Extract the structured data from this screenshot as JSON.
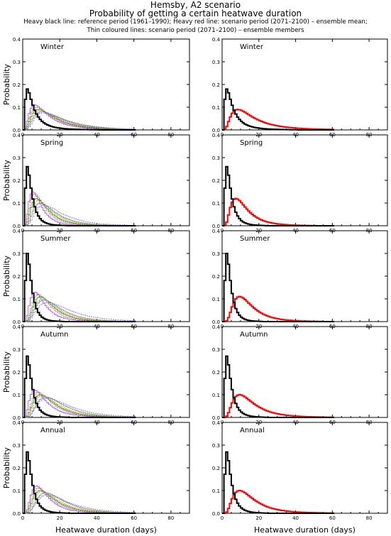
{
  "header": {
    "title": "Hemsby, A2 scenario",
    "subtitle": "Probability of getting a certain heatwave duration",
    "legend_line1": "Heavy black line: reference period (1961–1990); Heavy red line: scenario period (2071–2100) – ensemble mean;",
    "legend_line2": "Thin coloured lines: scenario period (2071–2100) – ensemble members"
  },
  "colors": {
    "reference": "#000000",
    "ensemble_mean": "#ff0000",
    "members": [
      "#a040ff",
      "#ff2020",
      "#00a000",
      "#d08000",
      "#808080",
      "#6060ff"
    ]
  },
  "chart_data": {
    "type": "line",
    "step": true,
    "xlabel": "Heatwave duration (days)",
    "ylabel": "Probability",
    "xlim": [
      0,
      90
    ],
    "ylim": [
      0,
      0.4
    ],
    "xticks": [
      "0",
      "20",
      "40",
      "60",
      "80"
    ],
    "yticks": [
      "0.0",
      "0.1",
      "0.2",
      "0.3",
      "0.4"
    ],
    "seasons": [
      {
        "name": "Winter",
        "reference": {
          "peak_x": 2,
          "peak_y": 0.18,
          "spread": 3.5
        },
        "ensemble_mean": {
          "peak_x": 8,
          "peak_y": 0.09,
          "spread": 10
        },
        "members": [
          {
            "peak_x": 6,
            "peak_y": 0.11,
            "spread": 8
          },
          {
            "peak_x": 7,
            "peak_y": 0.1,
            "spread": 9
          },
          {
            "peak_x": 8,
            "peak_y": 0.09,
            "spread": 10
          },
          {
            "peak_x": 9,
            "peak_y": 0.085,
            "spread": 11
          },
          {
            "peak_x": 10,
            "peak_y": 0.08,
            "spread": 12
          },
          {
            "peak_x": 11,
            "peak_y": 0.075,
            "spread": 13
          }
        ]
      },
      {
        "name": "Spring",
        "reference": {
          "peak_x": 2,
          "peak_y": 0.26,
          "spread": 2.5
        },
        "ensemble_mean": {
          "peak_x": 7,
          "peak_y": 0.12,
          "spread": 7
        },
        "members": [
          {
            "peak_x": 5,
            "peak_y": 0.15,
            "spread": 5
          },
          {
            "peak_x": 6,
            "peak_y": 0.14,
            "spread": 6
          },
          {
            "peak_x": 7,
            "peak_y": 0.12,
            "spread": 7
          },
          {
            "peak_x": 8,
            "peak_y": 0.11,
            "spread": 8
          },
          {
            "peak_x": 9,
            "peak_y": 0.1,
            "spread": 9
          },
          {
            "peak_x": 11,
            "peak_y": 0.09,
            "spread": 11
          }
        ]
      },
      {
        "name": "Summer",
        "reference": {
          "peak_x": 2,
          "peak_y": 0.3,
          "spread": 2.3
        },
        "ensemble_mean": {
          "peak_x": 9,
          "peak_y": 0.11,
          "spread": 8
        },
        "members": [
          {
            "peak_x": 6,
            "peak_y": 0.13,
            "spread": 6
          },
          {
            "peak_x": 8,
            "peak_y": 0.12,
            "spread": 7
          },
          {
            "peak_x": 9,
            "peak_y": 0.11,
            "spread": 8
          },
          {
            "peak_x": 10,
            "peak_y": 0.1,
            "spread": 9
          },
          {
            "peak_x": 11,
            "peak_y": 0.095,
            "spread": 10
          },
          {
            "peak_x": 13,
            "peak_y": 0.085,
            "spread": 13
          }
        ]
      },
      {
        "name": "Autumn",
        "reference": {
          "peak_x": 2,
          "peak_y": 0.27,
          "spread": 2.5
        },
        "ensemble_mean": {
          "peak_x": 9,
          "peak_y": 0.1,
          "spread": 9
        },
        "members": [
          {
            "peak_x": 6,
            "peak_y": 0.12,
            "spread": 7
          },
          {
            "peak_x": 8,
            "peak_y": 0.11,
            "spread": 8
          },
          {
            "peak_x": 9,
            "peak_y": 0.1,
            "spread": 9
          },
          {
            "peak_x": 10,
            "peak_y": 0.095,
            "spread": 10
          },
          {
            "peak_x": 12,
            "peak_y": 0.09,
            "spread": 11
          },
          {
            "peak_x": 13,
            "peak_y": 0.085,
            "spread": 13
          }
        ]
      },
      {
        "name": "Annual",
        "reference": {
          "peak_x": 2,
          "peak_y": 0.27,
          "spread": 2.5
        },
        "ensemble_mean": {
          "peak_x": 9,
          "peak_y": 0.1,
          "spread": 9
        },
        "members": [
          {
            "peak_x": 7,
            "peak_y": 0.12,
            "spread": 7
          },
          {
            "peak_x": 8,
            "peak_y": 0.11,
            "spread": 8
          },
          {
            "peak_x": 9,
            "peak_y": 0.1,
            "spread": 9
          },
          {
            "peak_x": 10,
            "peak_y": 0.095,
            "spread": 10
          },
          {
            "peak_x": 12,
            "peak_y": 0.09,
            "spread": 11
          },
          {
            "peak_x": 13,
            "peak_y": 0.08,
            "spread": 13
          }
        ]
      }
    ]
  }
}
